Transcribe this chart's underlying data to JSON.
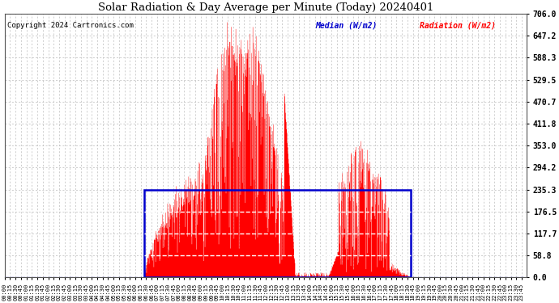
{
  "title": "Solar Radiation & Day Average per Minute (Today) 20240401",
  "copyright": "Copyright 2024 Cartronics.com",
  "legend_median": "Median (W/m2)",
  "legend_radiation": "Radiation (W/m2)",
  "background_color": "#ffffff",
  "grid_color": "#bbbbbb",
  "y_max": 706.0,
  "y_min": 0.0,
  "y_ticks": [
    0.0,
    58.8,
    117.7,
    176.5,
    235.3,
    294.2,
    353.0,
    411.8,
    470.7,
    529.5,
    588.3,
    647.2,
    706.0
  ],
  "total_minutes": 1440,
  "sunrise_minute": 385,
  "sunset_minute": 1120,
  "median_value": 235.3,
  "radiation_color": "#ff0000",
  "median_color": "#0000cc",
  "dashed_line_color": "#0000cc",
  "figwidth": 6.9,
  "figheight": 3.75,
  "dpi": 100
}
